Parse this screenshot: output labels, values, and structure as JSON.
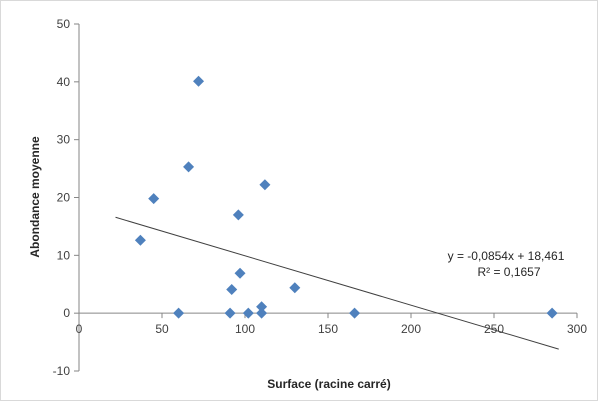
{
  "chart_data": {
    "type": "scatter",
    "title": "",
    "xlabel": "Surface (racine carré)",
    "ylabel": "Abondance moyenne",
    "xlim": [
      0,
      300
    ],
    "ylim": [
      -10,
      50
    ],
    "x_ticks": [
      "0",
      "50",
      "100",
      "150",
      "200",
      "250",
      "300"
    ],
    "y_ticks": [
      "-10",
      "0",
      "10",
      "20",
      "30",
      "40",
      "50"
    ],
    "grid": false,
    "legend": "none",
    "marker_color": "#4f81bd",
    "points": [
      {
        "x": 37,
        "y": 12.6
      },
      {
        "x": 45,
        "y": 19.8
      },
      {
        "x": 60,
        "y": 0
      },
      {
        "x": 66,
        "y": 25.3
      },
      {
        "x": 72,
        "y": 40.1
      },
      {
        "x": 91,
        "y": 0
      },
      {
        "x": 92,
        "y": 4.1
      },
      {
        "x": 96,
        "y": 17
      },
      {
        "x": 97,
        "y": 6.9
      },
      {
        "x": 102,
        "y": 0
      },
      {
        "x": 110,
        "y": 0
      },
      {
        "x": 110,
        "y": 1.1
      },
      {
        "x": 112,
        "y": 22.2
      },
      {
        "x": 130,
        "y": 4.4
      },
      {
        "x": 166,
        "y": 0
      },
      {
        "x": 285,
        "y": 0
      }
    ],
    "trendline": {
      "type": "linear",
      "slope": -0.0854,
      "intercept": 18.461,
      "x_range": [
        22,
        289
      ],
      "color": "#404040",
      "equation_label": "y = -0,0854x + 18,461",
      "r2_label": "R² = 0,1657"
    }
  }
}
